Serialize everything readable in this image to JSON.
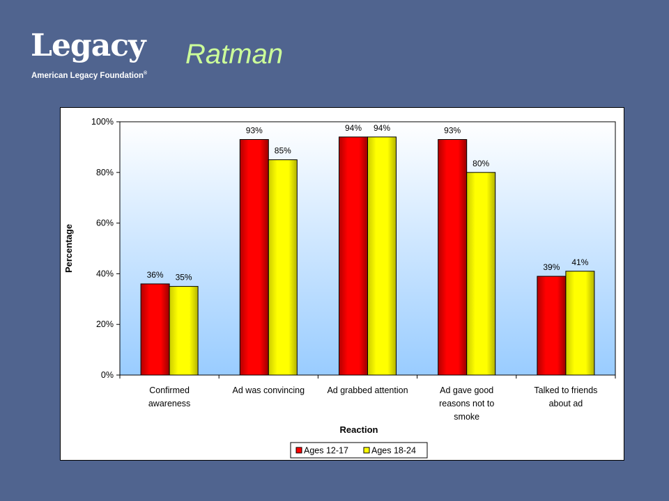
{
  "logo": {
    "wordmark": "Legacy",
    "subtitle": "American Legacy Foundation",
    "registered": "®"
  },
  "slide": {
    "title": "Ratman"
  },
  "colors": {
    "background": "#50648f",
    "title": "#ccff99",
    "series_1": "#ff0000",
    "series_2": "#ffff00"
  },
  "chart_data": {
    "type": "bar",
    "categories": [
      [
        "Confirmed",
        "awareness"
      ],
      [
        "Ad was convincing"
      ],
      [
        "Ad grabbed attention"
      ],
      [
        "Ad gave good",
        "reasons not to",
        "smoke"
      ],
      [
        "Talked to friends",
        "about ad"
      ]
    ],
    "series": [
      {
        "name": "Ages 12-17",
        "values": [
          36,
          93,
          94,
          93,
          39
        ],
        "labels": [
          "36%",
          "93%",
          "94%",
          "93%",
          "39%"
        ]
      },
      {
        "name": "Ages 18-24",
        "values": [
          35,
          85,
          94,
          80,
          41
        ],
        "labels": [
          "35%",
          "85%",
          "94%",
          "80%",
          "41%"
        ]
      }
    ],
    "xlabel": "Reaction",
    "ylabel": "Percentage",
    "ylim": [
      0,
      100
    ],
    "yticks": [
      "0%",
      "20%",
      "40%",
      "60%",
      "80%",
      "100%"
    ],
    "grid": false,
    "legend_position": "bottom",
    "plot_background": "gradient white to light blue"
  }
}
